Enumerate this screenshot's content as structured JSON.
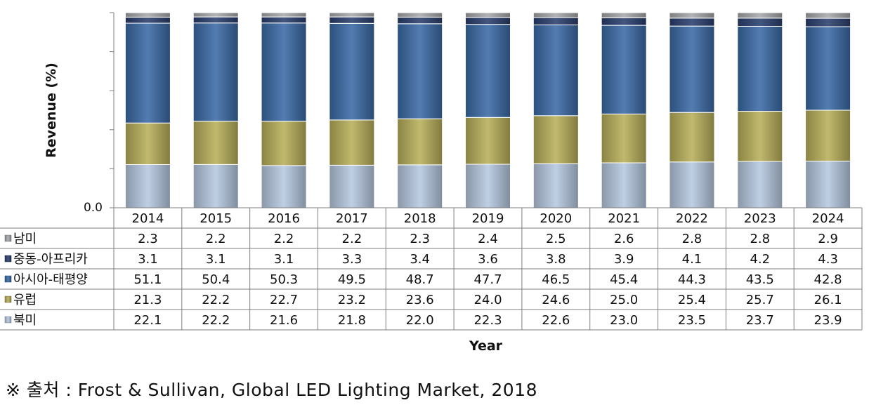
{
  "chart_data": {
    "type": "bar",
    "stacked": true,
    "normalized": true,
    "title": "",
    "xlabel": "Year",
    "ylabel": "Revenue (%)",
    "y_tick_label": "0.0",
    "ylim": [
      0,
      100
    ],
    "categories": [
      "2014",
      "2015",
      "2016",
      "2017",
      "2018",
      "2019",
      "2020",
      "2021",
      "2022",
      "2023",
      "2024"
    ],
    "series": [
      {
        "name": "북미",
        "color": "#b6c9e0",
        "values": [
          22.1,
          22.2,
          21.6,
          21.8,
          22.0,
          22.3,
          22.6,
          23.0,
          23.5,
          23.7,
          23.9
        ]
      },
      {
        "name": "유럽",
        "color": "#b8b05a",
        "values": [
          21.3,
          22.2,
          22.7,
          23.2,
          23.6,
          24.0,
          24.6,
          25.0,
          25.4,
          25.7,
          26.1
        ]
      },
      {
        "name": "아시아-태평양",
        "color": "#3b6aa6",
        "values": [
          51.1,
          50.4,
          50.3,
          49.5,
          48.7,
          47.7,
          46.5,
          45.4,
          44.3,
          43.5,
          42.8
        ]
      },
      {
        "name": "중동-아프리카",
        "color": "#2b3f6e",
        "values": [
          3.1,
          3.1,
          3.1,
          3.3,
          3.4,
          3.6,
          3.8,
          3.9,
          4.1,
          4.2,
          4.3
        ]
      },
      {
        "name": "남미",
        "color": "#a7a9ac",
        "values": [
          2.3,
          2.2,
          2.2,
          2.2,
          2.3,
          2.4,
          2.5,
          2.6,
          2.8,
          2.8,
          2.9
        ]
      }
    ],
    "table_row_order": [
      "남미",
      "중동-아프리카",
      "아시아-태평양",
      "유럽",
      "북미"
    ]
  },
  "source_text": "※ 출처 : Frost & Sullivan, Global LED Lighting Market, 2018"
}
